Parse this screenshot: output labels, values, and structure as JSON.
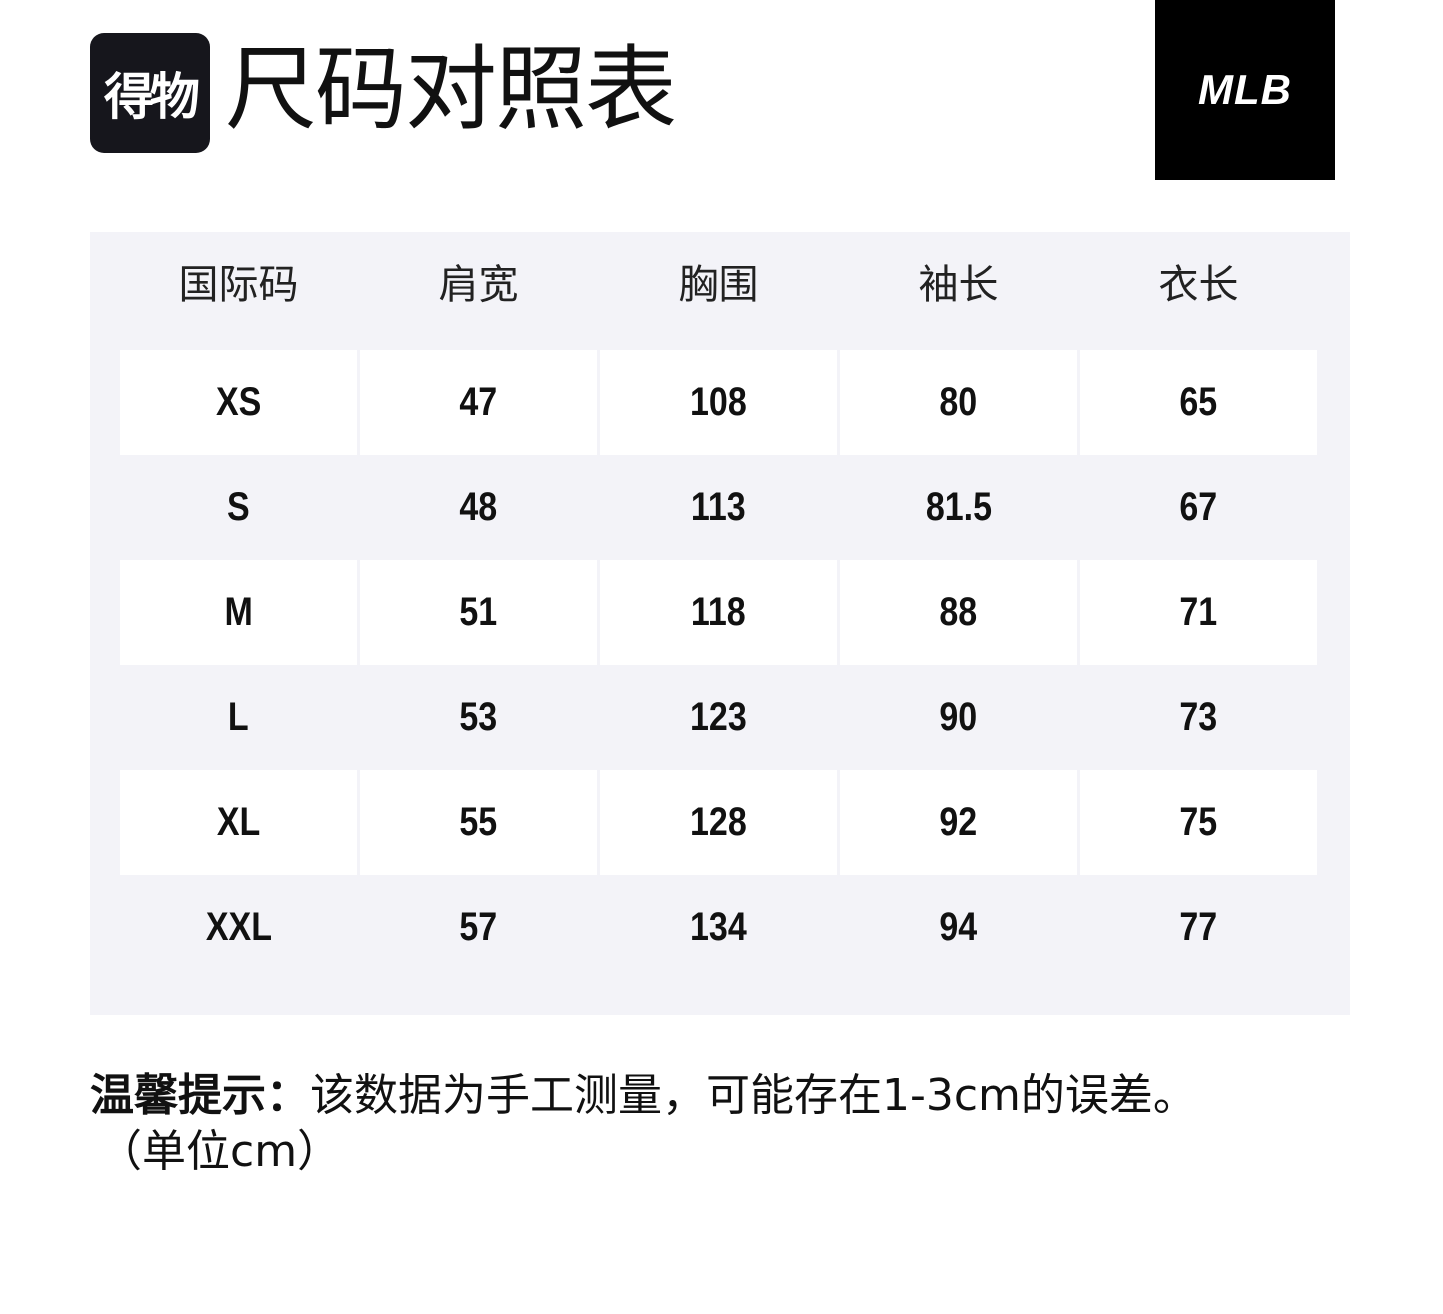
{
  "header": {
    "logo": "得物",
    "title": "尺码对照表",
    "brand": "MLB"
  },
  "table": {
    "columns": [
      "国际码",
      "肩宽",
      "胸围",
      "袖长",
      "衣长"
    ],
    "rows": [
      [
        "XS",
        "47",
        "108",
        "80",
        "65"
      ],
      [
        "S",
        "48",
        "113",
        "81.5",
        "67"
      ],
      [
        "M",
        "51",
        "118",
        "88",
        "71"
      ],
      [
        "L",
        "53",
        "123",
        "90",
        "73"
      ],
      [
        "XL",
        "55",
        "128",
        "92",
        "75"
      ],
      [
        "XXL",
        "57",
        "134",
        "94",
        "77"
      ]
    ]
  },
  "note": {
    "label": "温馨提示：",
    "text": "该数据为手工测量，可能存在1-3cm的误差。",
    "unit": "（单位cm）"
  }
}
